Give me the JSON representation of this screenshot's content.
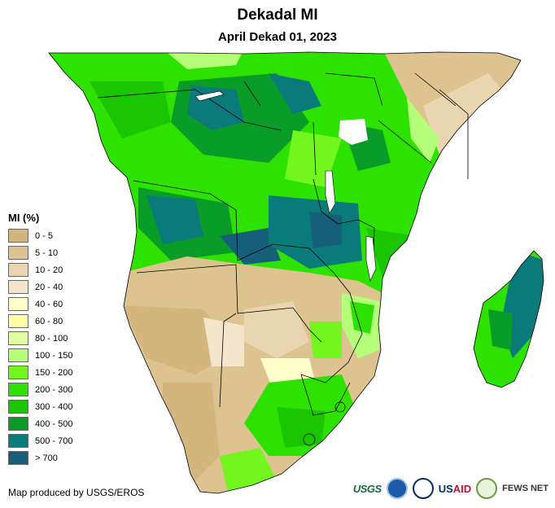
{
  "header": {
    "title": "Dekadal MI",
    "subtitle": "April Dekad 01, 2023"
  },
  "legend": {
    "title": "MI (%)",
    "items": [
      {
        "label": "0 - 5",
        "color": "#d4b57e"
      },
      {
        "label": "5 - 10",
        "color": "#dcc38f"
      },
      {
        "label": "10 - 20",
        "color": "#e9d6b0"
      },
      {
        "label": "20 - 40",
        "color": "#f3e6cc"
      },
      {
        "label": "40 - 60",
        "color": "#ffffcc"
      },
      {
        "label": "60 - 80",
        "color": "#ffffa8"
      },
      {
        "label": "80 - 100",
        "color": "#dfffa0"
      },
      {
        "label": "100 - 150",
        "color": "#b6ff7a"
      },
      {
        "label": "150 - 200",
        "color": "#73f51e"
      },
      {
        "label": "200 - 300",
        "color": "#2ee200"
      },
      {
        "label": "300 - 400",
        "color": "#19c600"
      },
      {
        "label": "400 - 500",
        "color": "#0a9c28"
      },
      {
        "label": "500 - 700",
        "color": "#0a7a7a"
      },
      {
        "label": "> 700",
        "color": "#155f7a"
      }
    ]
  },
  "footer": {
    "credit": "Map produced by USGS/EROS",
    "logos": {
      "usgs": "USGS",
      "usaid_us": "US",
      "usaid_aid": "AID",
      "fews": "FEWS NET"
    }
  }
}
